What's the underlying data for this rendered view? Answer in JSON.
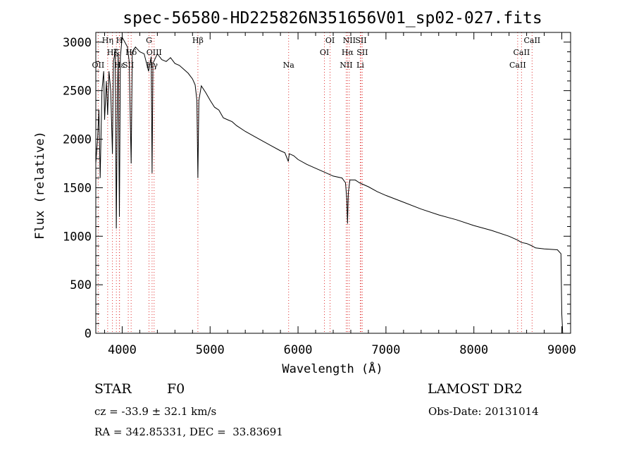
{
  "chart_data": {
    "type": "line",
    "title": "spec-56580-HD225826N351656V01_sp02-027.fits",
    "xlabel": "Wavelength (Å)",
    "ylabel": "Flux (relative)",
    "xlim": [
      3700,
      9100
    ],
    "ylim": [
      0,
      3100
    ],
    "xticks": [
      4000,
      5000,
      6000,
      7000,
      8000,
      9000
    ],
    "yticks": [
      0,
      500,
      1000,
      1500,
      2000,
      2500,
      3000
    ],
    "grid": false,
    "series": [
      {
        "x": [
          3700,
          3720,
          3735,
          3750,
          3770,
          3790,
          3800,
          3820,
          3835,
          3850,
          3870,
          3889,
          3900,
          3920,
          3933,
          3945,
          3955,
          3968,
          3980,
          4000,
          4030,
          4060,
          4080,
          4102,
          4115,
          4150,
          4200,
          4250,
          4300,
          4330,
          4340,
          4350,
          4370,
          4400,
          4450,
          4500,
          4550,
          4600,
          4650,
          4700,
          4750,
          4800,
          4830,
          4850,
          4861,
          4872,
          4900,
          4950,
          5000,
          5050,
          5100,
          5150,
          5200,
          5250,
          5300,
          5400,
          5500,
          5600,
          5700,
          5800,
          5850,
          5890,
          5900,
          5950,
          6000,
          6100,
          6200,
          6300,
          6400,
          6500,
          6540,
          6555,
          6563,
          6572,
          6590,
          6650,
          6700,
          6800,
          6900,
          7000,
          7200,
          7400,
          7600,
          7800,
          8000,
          8200,
          8400,
          8498,
          8542,
          8600,
          8662,
          8700,
          8800,
          8950,
          8990,
          9000,
          9010
        ],
        "y": [
          1750,
          2000,
          2300,
          1600,
          2500,
          2700,
          2200,
          2600,
          2250,
          2700,
          2500,
          1850,
          2800,
          2900,
          1080,
          2400,
          2900,
          1200,
          2850,
          3050,
          3000,
          2950,
          2800,
          1750,
          2900,
          2950,
          2900,
          2880,
          2700,
          2850,
          1650,
          2780,
          2820,
          2880,
          2820,
          2800,
          2840,
          2780,
          2760,
          2720,
          2680,
          2620,
          2560,
          2400,
          1600,
          2400,
          2550,
          2480,
          2400,
          2330,
          2300,
          2220,
          2200,
          2180,
          2140,
          2080,
          2030,
          1980,
          1930,
          1880,
          1860,
          1770,
          1850,
          1830,
          1790,
          1740,
          1700,
          1660,
          1620,
          1600,
          1550,
          1380,
          1130,
          1450,
          1580,
          1580,
          1550,
          1510,
          1460,
          1420,
          1350,
          1280,
          1220,
          1170,
          1110,
          1060,
          1000,
          960,
          935,
          925,
          900,
          880,
          870,
          860,
          820,
          200,
          0
        ]
      }
    ],
    "lines": [
      {
        "label": "OII",
        "wave": 3727,
        "row": 3
      },
      {
        "label": "Hη",
        "wave": 3835,
        "row": 1
      },
      {
        "label": "Hζ",
        "wave": 3889,
        "row": 2
      },
      {
        "label": "K",
        "wave": 3934,
        "row": 2
      },
      {
        "label": "Hε",
        "wave": 3970,
        "row": 3
      },
      {
        "label": "H",
        "wave": 3968,
        "row": 1
      },
      {
        "label": "SII",
        "wave": 4069,
        "row": 3
      },
      {
        "label": "Hδ",
        "wave": 4102,
        "row": 2
      },
      {
        "label": "G",
        "wave": 4305,
        "row": 1
      },
      {
        "label": "OIII",
        "wave": 4363,
        "row": 2
      },
      {
        "label": "Hγ",
        "wave": 4340,
        "row": 3
      },
      {
        "label": "Hβ",
        "wave": 4861,
        "row": 1
      },
      {
        "label": "Na",
        "wave": 5893,
        "row": 3
      },
      {
        "label": "OI",
        "wave": 6300,
        "row": 2
      },
      {
        "label": "OI",
        "wave": 6364,
        "row": 1
      },
      {
        "label": "NII",
        "wave": 6548,
        "row": 3
      },
      {
        "label": "NII",
        "wave": 6583,
        "row": 1
      },
      {
        "label": "Hα",
        "wave": 6563,
        "row": 2
      },
      {
        "label": "SII",
        "wave": 6716,
        "row": 1
      },
      {
        "label": "SII",
        "wave": 6731,
        "row": 2
      },
      {
        "label": "Li",
        "wave": 6708,
        "row": 3
      },
      {
        "label": "CaII",
        "wave": 8498,
        "row": 3
      },
      {
        "label": "CaII",
        "wave": 8542,
        "row": 2
      },
      {
        "label": "CaII",
        "wave": 8662,
        "row": 1
      }
    ]
  },
  "info": {
    "class_label": "STAR",
    "subclass": "F0",
    "survey": "LAMOST DR2",
    "cz": "cz = -33.9 ± 32.1 km/s",
    "obs_date": "Obs-Date: 20131014",
    "coords": "RA = 342.85331, DEC =  33.83691"
  },
  "colors": {
    "spectrum": "#000000",
    "line_markers": "#e03030",
    "axes": "#000000"
  }
}
